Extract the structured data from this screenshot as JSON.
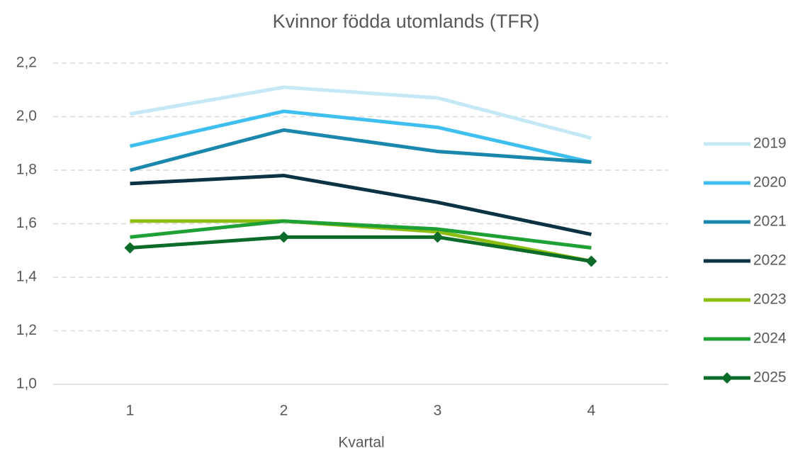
{
  "chart_data": {
    "type": "line",
    "title": "Kvinnor födda utomlands (TFR)",
    "x_label": "Kvartal",
    "categories": [
      "1",
      "2",
      "3",
      "4"
    ],
    "series": [
      {
        "name": "2019",
        "color": "#c5e8f7",
        "values": [
          2.01,
          2.11,
          2.07,
          1.92
        ]
      },
      {
        "name": "2020",
        "color": "#3ebfef",
        "values": [
          1.89,
          2.02,
          1.96,
          1.83
        ]
      },
      {
        "name": "2021",
        "color": "#1a87ad",
        "values": [
          1.8,
          1.95,
          1.87,
          1.83
        ]
      },
      {
        "name": "2022",
        "color": "#0c3344",
        "values": [
          1.75,
          1.78,
          1.68,
          1.56
        ]
      },
      {
        "name": "2023",
        "color": "#8cbd10",
        "values": [
          1.61,
          1.61,
          1.57,
          1.46
        ]
      },
      {
        "name": "2024",
        "color": "#1fa035",
        "values": [
          1.55,
          1.61,
          1.58,
          1.51
        ]
      },
      {
        "name": "2025",
        "color": "#0b6b28",
        "values": [
          1.51,
          1.55,
          1.55,
          1.46
        ],
        "marker": "diamond"
      }
    ],
    "ylim": [
      1.0,
      2.2
    ],
    "yticks": [
      {
        "value": 1.0,
        "label": "1,0"
      },
      {
        "value": 1.2,
        "label": "1,2"
      },
      {
        "value": 1.4,
        "label": "1,4"
      },
      {
        "value": 1.6,
        "label": "1,6"
      },
      {
        "value": 1.8,
        "label": "1,8"
      },
      {
        "value": 2.0,
        "label": "2,0"
      },
      {
        "value": 2.2,
        "label": "2,2"
      }
    ],
    "grid": true,
    "legend": "right"
  }
}
